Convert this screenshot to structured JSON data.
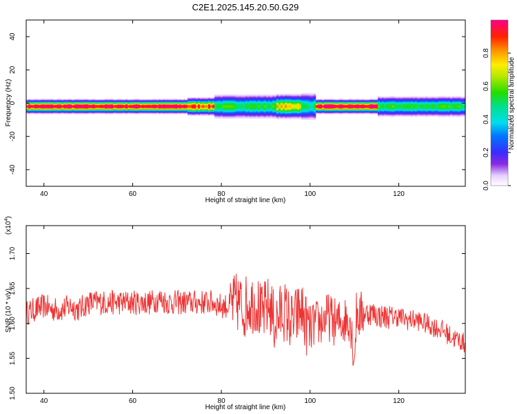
{
  "figure": {
    "title": "C2E1.2025.145.20.50.G29"
  },
  "chart_data": [
    {
      "type": "heatmap",
      "title": "C2E1.2025.145.20.50.G29",
      "xlabel": "Height of straight line (km)",
      "ylabel": "Frequency (Hz)",
      "xlim": [
        36,
        135
      ],
      "ylim": [
        -50,
        50
      ],
      "x_ticks": [
        "40",
        "60",
        "80",
        "100",
        "120"
      ],
      "y_ticks": [
        "40",
        "20",
        "0",
        "-20",
        "-40"
      ],
      "colorbar": {
        "label": "Normalized spectral amplitude",
        "range": [
          0,
          1
        ],
        "ticks": [
          "0.0",
          "0.2",
          "0.4",
          "0.6",
          "0.8"
        ]
      },
      "band_center_hz": -2,
      "band_segments": [
        {
          "x_start": 36,
          "x_end": 72,
          "peak_amplitude": 1.0,
          "width_hz": 4
        },
        {
          "x_start": 72,
          "x_end": 78,
          "peak_amplitude": 0.9,
          "width_hz": 5
        },
        {
          "x_start": 78,
          "x_end": 92,
          "peak_amplitude": 0.55,
          "width_hz": 7
        },
        {
          "x_start": 92,
          "x_end": 98,
          "peak_amplitude": 0.75,
          "width_hz": 7
        },
        {
          "x_start": 98,
          "x_end": 101,
          "peak_amplitude": 0.5,
          "width_hz": 8
        },
        {
          "x_start": 101,
          "x_end": 115,
          "peak_amplitude": 1.0,
          "width_hz": 4
        },
        {
          "x_start": 115,
          "x_end": 135,
          "peak_amplitude": 0.55,
          "width_hz": 6
        }
      ]
    },
    {
      "type": "line",
      "xlabel": "Height of straight line (km)",
      "ylabel": "SNR (10 * v/v)",
      "y_multiplier": "(x10",
      "y_multiplier_exponent": "4",
      "y_multiplier_close": ")",
      "xlim": [
        36,
        135
      ],
      "ylim": [
        1.5,
        1.74
      ],
      "x_ticks": [
        "40",
        "60",
        "80",
        "100",
        "120"
      ],
      "y_ticks": [
        "1.70",
        "1.65",
        "1.60",
        "1.55",
        "1.50"
      ],
      "color": "#ee3333",
      "series": [
        {
          "x": [
            36,
            38,
            40,
            42,
            44,
            46,
            48,
            50,
            52,
            54,
            56,
            58,
            60,
            62,
            64,
            66,
            68,
            70,
            72,
            74,
            76,
            78,
            80,
            82,
            84,
            85,
            86,
            88,
            89,
            90,
            91,
            92,
            94,
            96,
            98,
            99,
            100,
            101,
            102,
            104,
            106,
            108,
            109,
            110,
            110.5,
            111,
            112,
            114,
            116,
            118,
            120,
            122,
            124,
            126,
            128,
            130,
            132,
            134,
            135
          ],
          "values": [
            1.615,
            1.62,
            1.625,
            1.62,
            1.62,
            1.625,
            1.62,
            1.63,
            1.63,
            1.63,
            1.63,
            1.63,
            1.63,
            1.63,
            1.63,
            1.635,
            1.63,
            1.63,
            1.63,
            1.63,
            1.63,
            1.63,
            1.625,
            1.625,
            1.63,
            1.62,
            1.63,
            1.63,
            1.61,
            1.62,
            1.625,
            1.6,
            1.62,
            1.6,
            1.62,
            1.6,
            1.59,
            1.6,
            1.6,
            1.61,
            1.6,
            1.605,
            1.61,
            1.55,
            1.62,
            1.61,
            1.615,
            1.615,
            1.61,
            1.61,
            1.61,
            1.605,
            1.605,
            1.6,
            1.595,
            1.59,
            1.58,
            1.575,
            1.57
          ]
        }
      ]
    }
  ]
}
